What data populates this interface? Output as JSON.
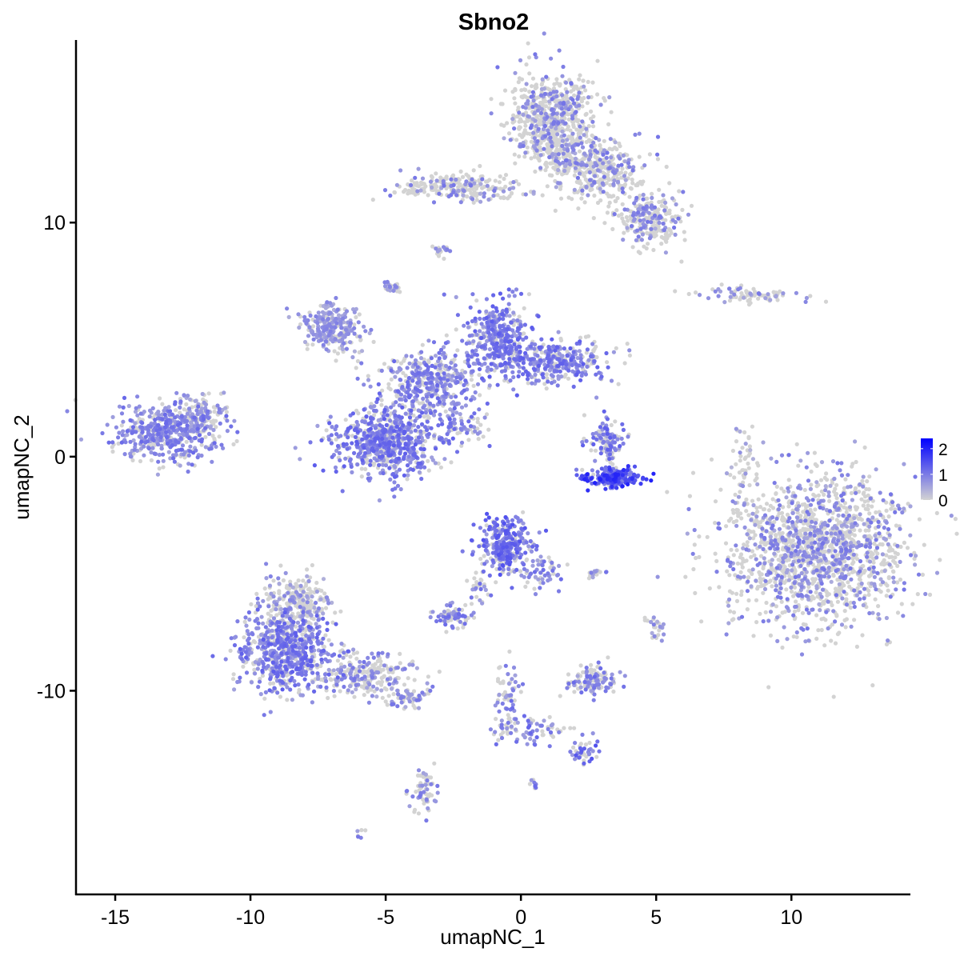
{
  "chart_data": {
    "type": "scatter",
    "title": "Sbno2",
    "xlabel": "umapNC_1",
    "ylabel": "umapNC_2",
    "xlim": [
      -16.45,
      14.4
    ],
    "ylim": [
      -18.7,
      17.8
    ],
    "x_ticks": [
      -15,
      -10,
      -5,
      0,
      5,
      10
    ],
    "y_ticks": [
      -10,
      0,
      10
    ],
    "grid": false,
    "legend": {
      "position": "right",
      "type": "colorbar",
      "ticks": [
        0,
        1,
        2
      ],
      "range": [
        0,
        2.4
      ],
      "low_color": "#d3d3d3",
      "high_color": "#0000ff"
    },
    "clusters": [
      {
        "x": -13.0,
        "y": 1.1,
        "sx": 0.9,
        "sy": 0.6,
        "n": 500,
        "frac_expr": 0.75,
        "expr": 0.9
      },
      {
        "x": -11.8,
        "y": 1.8,
        "sx": 0.5,
        "sy": 0.4,
        "n": 90,
        "frac_expr": 0.5,
        "expr": 0.7
      },
      {
        "x": -8.7,
        "y": -8.3,
        "sx": 0.9,
        "sy": 0.9,
        "n": 650,
        "frac_expr": 0.7,
        "expr": 1.0
      },
      {
        "x": -8.2,
        "y": -6.3,
        "sx": 0.6,
        "sy": 0.6,
        "n": 250,
        "frac_expr": 0.35,
        "expr": 0.7
      },
      {
        "x": -5.8,
        "y": -9.3,
        "sx": 0.9,
        "sy": 0.45,
        "n": 250,
        "frac_expr": 0.4,
        "expr": 0.8
      },
      {
        "x": -4.1,
        "y": -10.3,
        "sx": 0.4,
        "sy": 0.25,
        "n": 60,
        "frac_expr": 0.5,
        "expr": 0.8
      },
      {
        "x": -3.6,
        "y": -14.2,
        "sx": 0.25,
        "sy": 0.5,
        "n": 60,
        "frac_expr": 0.5,
        "expr": 0.8
      },
      {
        "x": -7.0,
        "y": 5.5,
        "sx": 0.55,
        "sy": 0.5,
        "n": 260,
        "frac_expr": 0.7,
        "expr": 0.7
      },
      {
        "x": -5.0,
        "y": 0.6,
        "sx": 0.95,
        "sy": 0.75,
        "n": 650,
        "frac_expr": 0.7,
        "expr": 1.0
      },
      {
        "x": -3.4,
        "y": 3.1,
        "sx": 0.9,
        "sy": 0.7,
        "n": 420,
        "frac_expr": 0.6,
        "expr": 0.9
      },
      {
        "x": -0.9,
        "y": 5.2,
        "sx": 0.6,
        "sy": 0.8,
        "n": 360,
        "frac_expr": 0.75,
        "expr": 1.0
      },
      {
        "x": 1.2,
        "y": 4.0,
        "sx": 1.0,
        "sy": 0.45,
        "n": 360,
        "frac_expr": 0.7,
        "expr": 1.0
      },
      {
        "x": -2.2,
        "y": 1.2,
        "sx": 0.5,
        "sy": 0.4,
        "n": 60,
        "frac_expr": 0.6,
        "expr": 0.9
      },
      {
        "x": -4.7,
        "y": 7.3,
        "sx": 0.15,
        "sy": 0.15,
        "n": 25,
        "frac_expr": 0.5,
        "expr": 0.7
      },
      {
        "x": -3.0,
        "y": 8.8,
        "sx": 0.15,
        "sy": 0.15,
        "n": 20,
        "frac_expr": 0.5,
        "expr": 0.7
      },
      {
        "x": 1.2,
        "y": 14.3,
        "sx": 0.8,
        "sy": 1.0,
        "n": 700,
        "frac_expr": 0.3,
        "expr": 0.8
      },
      {
        "x": 2.8,
        "y": 12.3,
        "sx": 0.8,
        "sy": 0.7,
        "n": 350,
        "frac_expr": 0.3,
        "expr": 0.8
      },
      {
        "x": 4.8,
        "y": 10.2,
        "sx": 0.6,
        "sy": 0.6,
        "n": 250,
        "frac_expr": 0.35,
        "expr": 0.8
      },
      {
        "x": -2.3,
        "y": 11.5,
        "sx": 1.1,
        "sy": 0.3,
        "n": 250,
        "frac_expr": 0.3,
        "expr": 0.8
      },
      {
        "x": 8.6,
        "y": 6.9,
        "sx": 1.1,
        "sy": 0.15,
        "n": 80,
        "frac_expr": 0.4,
        "expr": 0.8
      },
      {
        "x": 8.2,
        "y": 0.0,
        "sx": 0.2,
        "sy": 0.9,
        "n": 40,
        "frac_expr": 0.3,
        "expr": 0.6
      },
      {
        "x": 3.4,
        "y": -0.9,
        "sx": 0.5,
        "sy": 0.2,
        "n": 200,
        "frac_expr": 0.9,
        "expr": 1.5
      },
      {
        "x": 3.2,
        "y": 0.6,
        "sx": 0.35,
        "sy": 0.5,
        "n": 120,
        "frac_expr": 0.6,
        "expr": 1.0
      },
      {
        "x": 10.9,
        "y": -3.9,
        "sx": 1.6,
        "sy": 1.6,
        "n": 1600,
        "frac_expr": 0.35,
        "expr": 0.8
      },
      {
        "x": -0.6,
        "y": -3.7,
        "sx": 0.5,
        "sy": 0.6,
        "n": 300,
        "frac_expr": 0.75,
        "expr": 1.1
      },
      {
        "x": 0.7,
        "y": -4.9,
        "sx": 0.4,
        "sy": 0.35,
        "n": 60,
        "frac_expr": 0.6,
        "expr": 0.9
      },
      {
        "x": -2.5,
        "y": -6.9,
        "sx": 0.35,
        "sy": 0.25,
        "n": 70,
        "frac_expr": 0.6,
        "expr": 0.9
      },
      {
        "x": -1.5,
        "y": -5.5,
        "sx": 0.25,
        "sy": 0.5,
        "n": 30,
        "frac_expr": 0.6,
        "expr": 0.9
      },
      {
        "x": 2.6,
        "y": -9.6,
        "sx": 0.45,
        "sy": 0.3,
        "n": 130,
        "frac_expr": 0.5,
        "expr": 0.9
      },
      {
        "x": 0.5,
        "y": -11.7,
        "sx": 0.7,
        "sy": 0.3,
        "n": 70,
        "frac_expr": 0.6,
        "expr": 1.0
      },
      {
        "x": 2.3,
        "y": -12.6,
        "sx": 0.3,
        "sy": 0.2,
        "n": 40,
        "frac_expr": 0.7,
        "expr": 1.1
      },
      {
        "x": -0.5,
        "y": -10.4,
        "sx": 0.25,
        "sy": 0.8,
        "n": 60,
        "frac_expr": 0.5,
        "expr": 0.9
      },
      {
        "x": 5.0,
        "y": -7.3,
        "sx": 0.2,
        "sy": 0.25,
        "n": 25,
        "frac_expr": 0.4,
        "expr": 0.7
      },
      {
        "x": 2.8,
        "y": -5.0,
        "sx": 0.2,
        "sy": 0.1,
        "n": 15,
        "frac_expr": 0.5,
        "expr": 0.8
      },
      {
        "x": -6.0,
        "y": -16.1,
        "sx": 0.1,
        "sy": 0.1,
        "n": 6,
        "frac_expr": 0.7,
        "expr": 0.9
      },
      {
        "x": 0.5,
        "y": -14.0,
        "sx": 0.1,
        "sy": 0.1,
        "n": 8,
        "frac_expr": 0.7,
        "expr": 0.9
      }
    ]
  }
}
